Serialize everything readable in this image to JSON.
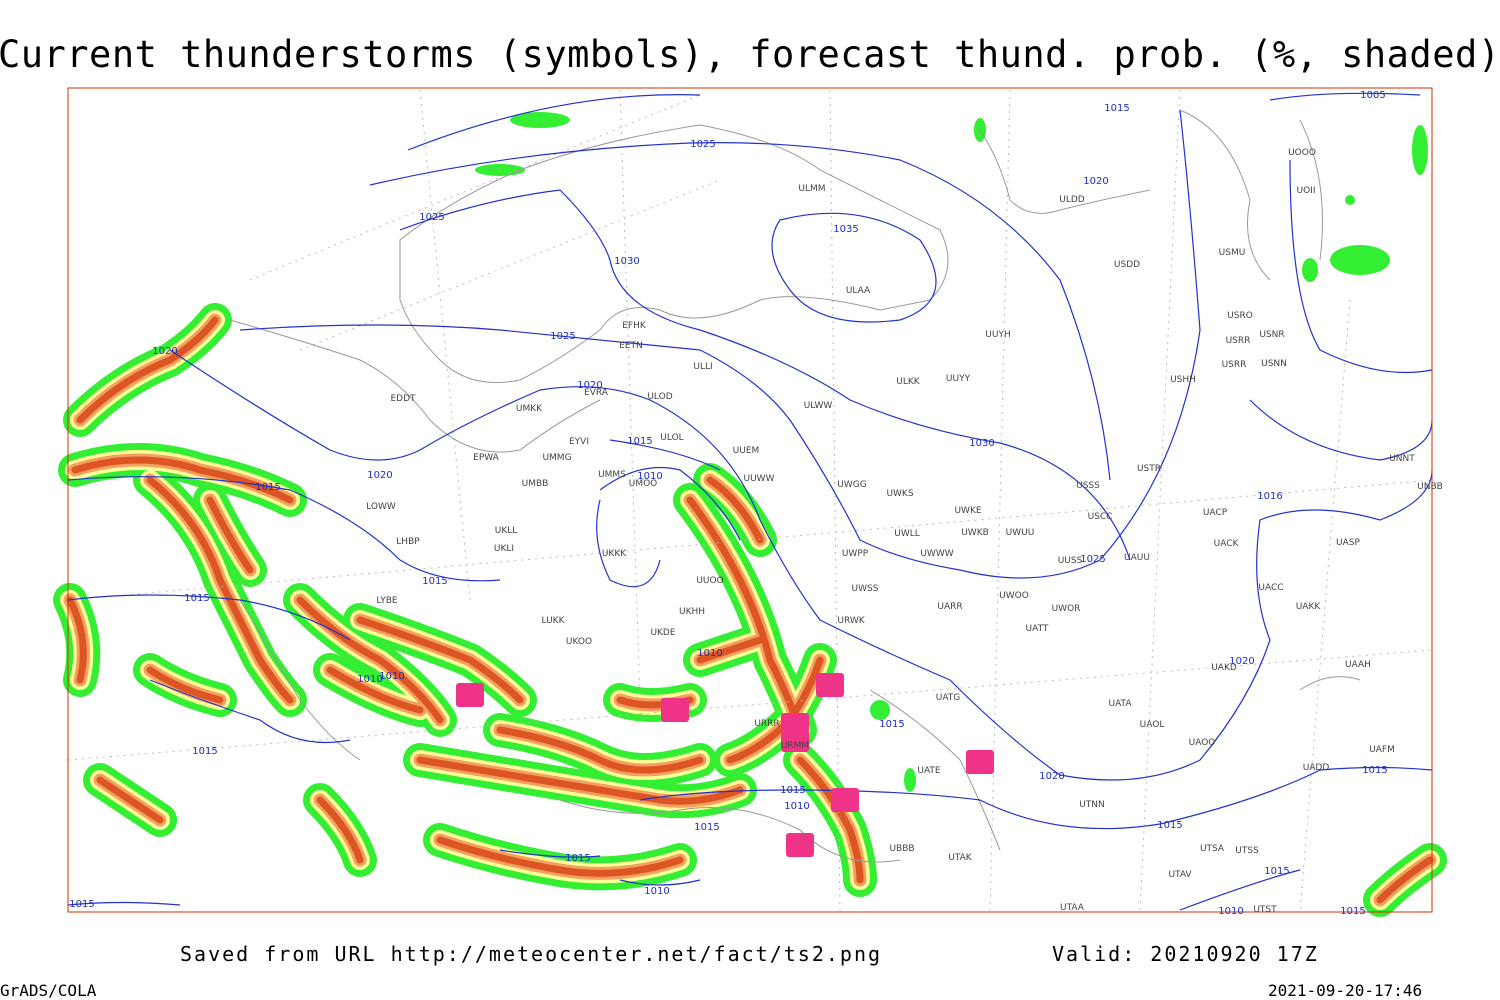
{
  "header": {
    "title": "Current thunderstorms (symbols), forecast thund. prob. (%, shaded)"
  },
  "isobar_labels": [
    1015,
    1025,
    1025,
    1035,
    1030,
    1020,
    1025,
    1020,
    1020,
    1015,
    1020,
    1030,
    1015,
    1010,
    1016,
    1025,
    1015,
    1015,
    1010,
    1010,
    1010,
    1015,
    1015,
    1020,
    1020,
    1015,
    1010,
    1015,
    1015,
    1015,
    1010,
    1015,
    1005,
    1015,
    1015,
    1015,
    1010
  ],
  "stations": [
    "ULMM",
    "ULDD",
    "ULAA",
    "USDD",
    "USMU",
    "ULWW",
    "ULKK",
    "UUYY",
    "UUYH",
    "ULLI",
    "EFHK",
    "EETN",
    "ULOD",
    "EVRA",
    "EDDT",
    "UMKK",
    "ULOL",
    "EYVI",
    "UMMG",
    "EPWA",
    "UUEM",
    "UMMS",
    "UMOO",
    "UUWW",
    "UWGG",
    "UWKS",
    "UMBB",
    "UWKE",
    "UWKB",
    "UWUU",
    "UWLL",
    "UWWW",
    "UWPP",
    "USSS",
    "USTR",
    "USCC",
    "UACP",
    "UACK",
    "UASP",
    "UKLL",
    "UKLI",
    "LHBP",
    "LOWW",
    "UKKK",
    "UUOO",
    "UAUU",
    "UWSS",
    "UARR",
    "UWOO",
    "UWOR",
    "UATT",
    "UACC",
    "UAKK",
    "UKHH",
    "LUKK",
    "UKOO",
    "UKDE",
    "URWK",
    "UAKD",
    "UAAH",
    "UATG",
    "UATA",
    "UAOL",
    "UAOO",
    "UATE",
    "UADD",
    "UAFM",
    "URMM",
    "URRR",
    "UTNN",
    "UTAK",
    "UTSA",
    "UTSS",
    "UTAV",
    "UTAA",
    "UBBB",
    "UTST",
    "UOOO",
    "UOII",
    "USRO",
    "USNR",
    "USRR",
    "USRR",
    "USNN",
    "USHH",
    "UNNT",
    "UNBB",
    "LYBE",
    "UUSS"
  ],
  "footer": {
    "saved_from": "Saved from URL http://meteocenter.net/fact/ts2.png",
    "valid": "Valid: 20210920 17Z",
    "software": "GrADS/COLA",
    "timestamp": "2021-09-20-17:46"
  }
}
